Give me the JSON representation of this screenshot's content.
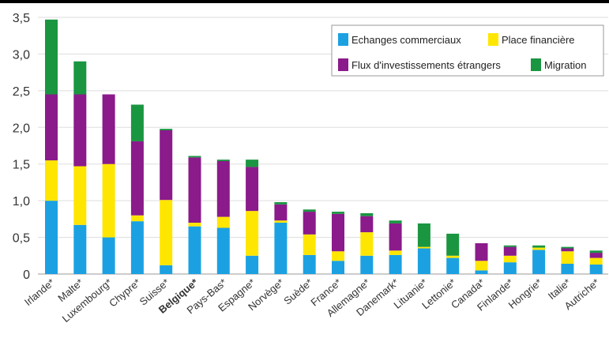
{
  "chart_data": {
    "type": "bar",
    "stacked": true,
    "categories": [
      "Irlande",
      "Malte",
      "Luxembourg",
      "Chypre",
      "Suisse",
      "Belgique",
      "Pays-Bas",
      "Espagne",
      "Norvège",
      "Suède",
      "France",
      "Allemagne",
      "Danemark",
      "Lituanie",
      "Lettonie",
      "Canada",
      "Finlande",
      "Hongrie",
      "Italie",
      "Autriche"
    ],
    "highlight_category": "Belgique",
    "series": [
      {
        "name": "Echanges commerciaux",
        "color": "#1ba1e2",
        "values": [
          1.0,
          0.67,
          0.5,
          0.72,
          0.12,
          0.65,
          0.63,
          0.25,
          0.7,
          0.26,
          0.18,
          0.25,
          0.26,
          0.35,
          0.22,
          0.05,
          0.16,
          0.33,
          0.14,
          0.13
        ]
      },
      {
        "name": "Place financière",
        "color": "#ffe600",
        "values": [
          0.55,
          0.8,
          1.0,
          0.08,
          0.89,
          0.05,
          0.15,
          0.61,
          0.03,
          0.28,
          0.13,
          0.32,
          0.06,
          0.02,
          0.03,
          0.13,
          0.09,
          0.03,
          0.17,
          0.09
        ]
      },
      {
        "name": "Flux d'investissements étrangers",
        "color": "#8b1a8b",
        "values": [
          0.9,
          0.98,
          0.95,
          1.01,
          0.95,
          0.89,
          0.76,
          0.6,
          0.22,
          0.31,
          0.51,
          0.22,
          0.37,
          0.0,
          0.0,
          0.24,
          0.12,
          0.0,
          0.04,
          0.07
        ]
      },
      {
        "name": "Migration",
        "color": "#1a9641",
        "values": [
          1.02,
          0.45,
          0.0,
          0.5,
          0.02,
          0.02,
          0.02,
          0.1,
          0.03,
          0.03,
          0.03,
          0.04,
          0.04,
          0.32,
          0.3,
          0.0,
          0.02,
          0.03,
          0.02,
          0.03
        ]
      }
    ],
    "yticks": [
      "0",
      "0,5",
      "1,0",
      "1,5",
      "2,0",
      "2,5",
      "3,0",
      "3,5"
    ],
    "ylim": [
      0,
      3.5
    ],
    "grid": true,
    "legend_position": "top-right",
    "title": "",
    "xlabel": "",
    "ylabel": "",
    "category_suffix": "*"
  }
}
